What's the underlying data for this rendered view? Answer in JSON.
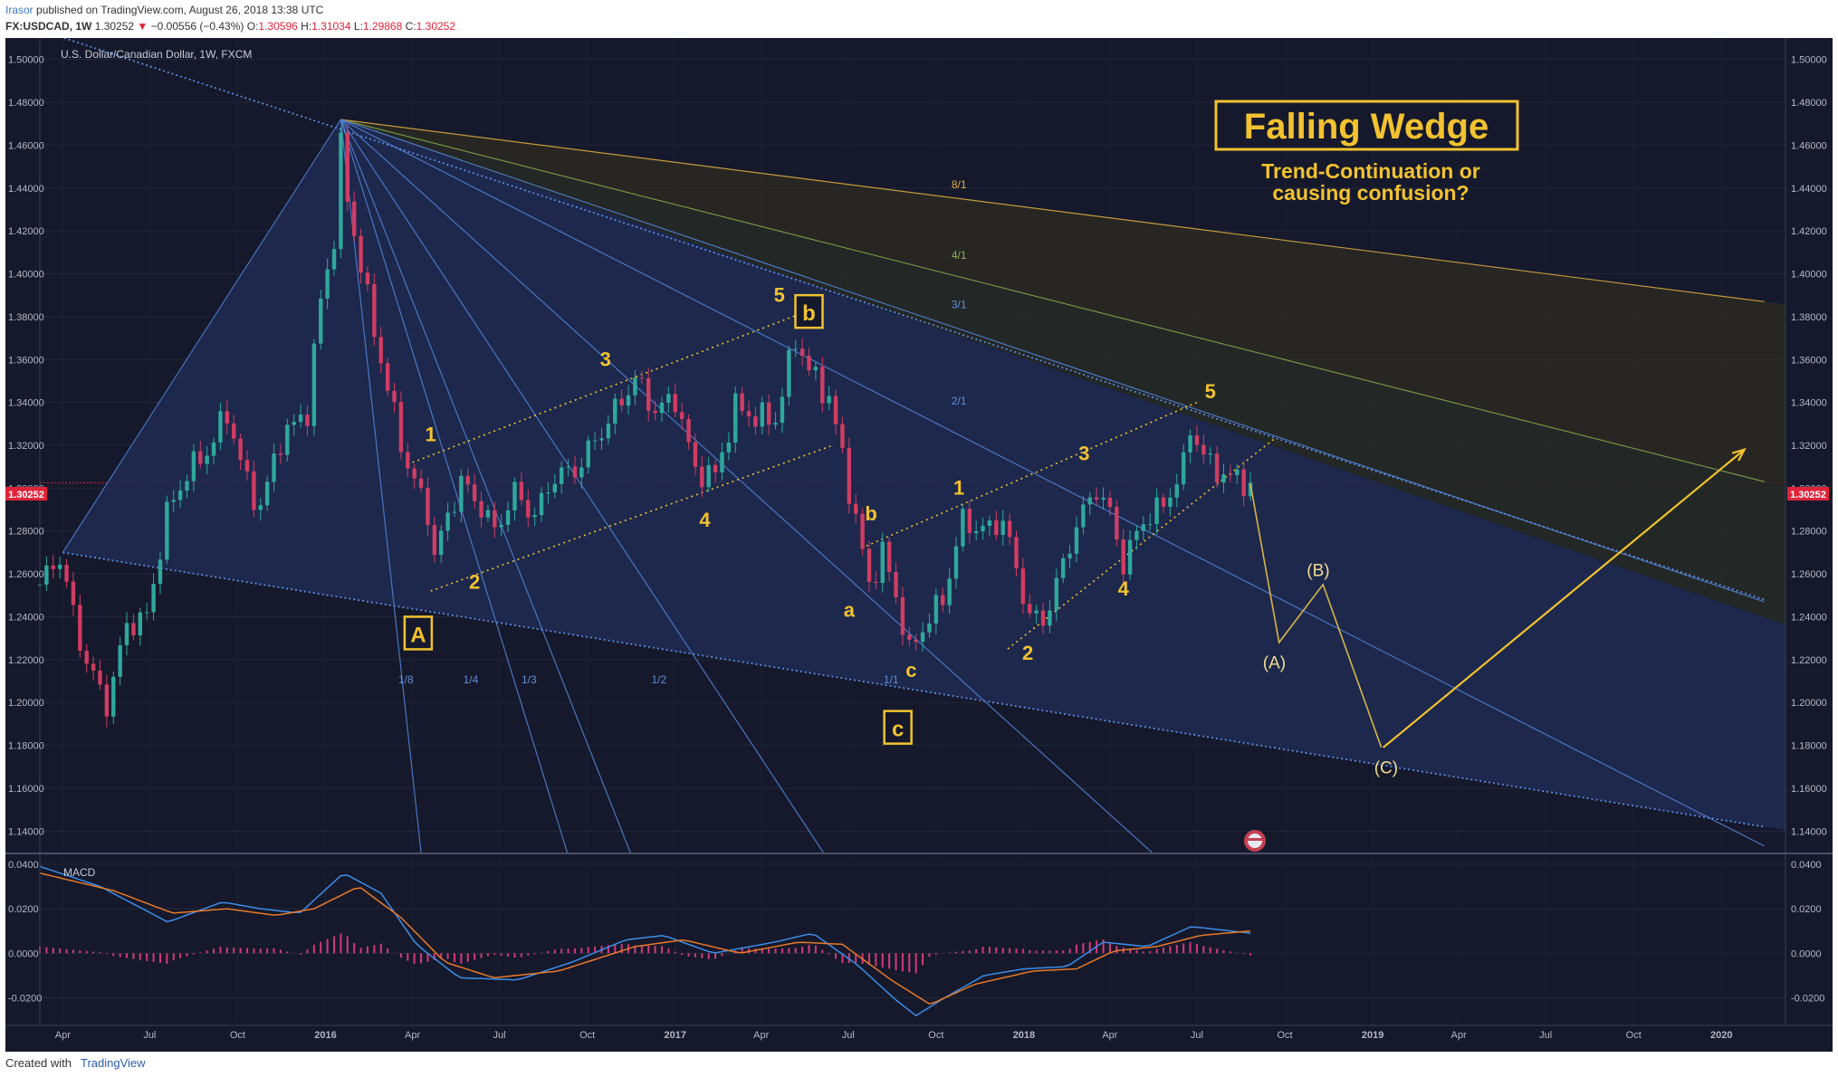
{
  "header": {
    "user": "Irasor",
    "published": "published on TradingView.com, August 26, 2018 13:38 UTC",
    "symbol": "FX:USDCAD, 1W",
    "price": "1.30252",
    "arrow": "▼",
    "change": "−0.00556 (−0.43%)",
    "o_label": "O:",
    "o_val": "1.30596",
    "h_label": "H:",
    "h_val": "1.31034",
    "l_label": "L:",
    "l_val": "1.29868",
    "c_label": "C:",
    "c_val": "1.30252"
  },
  "legend": "U.S. Dollar/Canadian Dollar, 1W, FXCM",
  "macd_label": "MACD",
  "last_price_tag": "1.30252",
  "annotations": {
    "title": "Falling Wedge",
    "subtitle1": "Trend-Continuation or",
    "subtitle2": "causing confusion?",
    "waves": [
      {
        "t": "1",
        "x": "2016-04-20",
        "y": 1.322,
        "c": "#f2c230"
      },
      {
        "t": "2",
        "x": "2016-06-05",
        "y": 1.253,
        "c": "#f2c230"
      },
      {
        "t": "3",
        "x": "2016-10-20",
        "y": 1.357,
        "c": "#f2c230"
      },
      {
        "t": "4",
        "x": "2017-02-01",
        "y": 1.282,
        "c": "#f2c230"
      },
      {
        "t": "5",
        "x": "2017-04-20",
        "y": 1.387,
        "c": "#f2c230"
      },
      {
        "t": "a",
        "x": "2017-07-02",
        "y": 1.24,
        "c": "#f2c230"
      },
      {
        "t": "b",
        "x": "2017-07-25",
        "y": 1.285,
        "c": "#f2c230"
      },
      {
        "t": "c",
        "x": "2017-09-05",
        "y": 1.212,
        "c": "#f2c230"
      },
      {
        "t": "1",
        "x": "2017-10-25",
        "y": 1.297,
        "c": "#f2c230"
      },
      {
        "t": "2",
        "x": "2018-01-05",
        "y": 1.22,
        "c": "#f2c230"
      },
      {
        "t": "3",
        "x": "2018-03-05",
        "y": 1.313,
        "c": "#f2c230"
      },
      {
        "t": "4",
        "x": "2018-04-15",
        "y": 1.25,
        "c": "#f2c230"
      },
      {
        "t": "5",
        "x": "2018-07-15",
        "y": 1.342,
        "c": "#f2c230"
      },
      {
        "t": "(A)",
        "x": "2018-09-20",
        "y": 1.216,
        "c": "#f2dc90"
      },
      {
        "t": "(B)",
        "x": "2018-11-05",
        "y": 1.259,
        "c": "#f2dc90"
      },
      {
        "t": "(C)",
        "x": "2019-01-15",
        "y": 1.167,
        "c": "#f2dc90"
      }
    ],
    "boxes": [
      {
        "t": "A",
        "x": "2016-04-07",
        "y": 1.232
      },
      {
        "t": "b",
        "x": "2017-05-21",
        "y": 1.382
      },
      {
        "t": "c",
        "x": "2017-08-22",
        "y": 1.188
      }
    ],
    "fan_labels": [
      {
        "t": "8/1",
        "x": "2017-10-25",
        "y": 1.44,
        "c": "#e0b040"
      },
      {
        "t": "4/1",
        "x": "2017-10-25",
        "y": 1.407,
        "c": "#8fb050"
      },
      {
        "t": "3/1",
        "x": "2017-10-25",
        "y": 1.384,
        "c": "#5f8fd8"
      },
      {
        "t": "2/1",
        "x": "2017-10-25",
        "y": 1.339,
        "c": "#5f8fd8"
      },
      {
        "t": "1/1",
        "x": "2017-08-15",
        "y": 1.209,
        "c": "#5f8fd8"
      },
      {
        "t": "1/2",
        "x": "2016-12-15",
        "y": 1.209,
        "c": "#5f8fd8"
      },
      {
        "t": "1/3",
        "x": "2016-08-01",
        "y": 1.209,
        "c": "#5f8fd8"
      },
      {
        "t": "1/4",
        "x": "2016-06-01",
        "y": 1.209,
        "c": "#5f8fd8"
      },
      {
        "t": "1/8",
        "x": "2016-03-25",
        "y": 1.209,
        "c": "#5f8fd8"
      }
    ]
  },
  "chart_data": {
    "type": "candlestick",
    "title": "U.S. Dollar/Canadian Dollar, 1W, FXCM",
    "y_range": [
      1.13,
      1.51
    ],
    "y_ticks": [
      "1.14000",
      "1.16000",
      "1.18000",
      "1.20000",
      "1.22000",
      "1.24000",
      "1.26000",
      "1.28000",
      "1.30000",
      "1.32000",
      "1.34000",
      "1.36000",
      "1.38000",
      "1.40000",
      "1.42000",
      "1.44000",
      "1.46000",
      "1.48000",
      "1.50000"
    ],
    "x_range": [
      "2015-03-08",
      "2020-03-08"
    ],
    "x_ticks": [
      {
        "label": "Apr",
        "date": "2015-04-01"
      },
      {
        "label": "Jul",
        "date": "2015-07-01"
      },
      {
        "label": "Oct",
        "date": "2015-10-01"
      },
      {
        "label": "2016",
        "date": "2016-01-01"
      },
      {
        "label": "Apr",
        "date": "2016-04-01"
      },
      {
        "label": "Jul",
        "date": "2016-07-01"
      },
      {
        "label": "Oct",
        "date": "2016-10-01"
      },
      {
        "label": "2017",
        "date": "2017-01-01"
      },
      {
        "label": "Apr",
        "date": "2017-04-01"
      },
      {
        "label": "Jul",
        "date": "2017-07-01"
      },
      {
        "label": "Oct",
        "date": "2017-10-01"
      },
      {
        "label": "2018",
        "date": "2018-01-01"
      },
      {
        "label": "Apr",
        "date": "2018-04-01"
      },
      {
        "label": "Jul",
        "date": "2018-07-01"
      },
      {
        "label": "Oct",
        "date": "2018-10-01"
      },
      {
        "label": "2019",
        "date": "2019-01-01"
      },
      {
        "label": "Apr",
        "date": "2019-04-01"
      },
      {
        "label": "Jul",
        "date": "2019-07-01"
      },
      {
        "label": "Oct",
        "date": "2019-10-01"
      },
      {
        "label": "2020",
        "date": "2020-01-01"
      }
    ],
    "anchors": [
      [
        "2015-03-08",
        1.255
      ],
      [
        "2015-03-29",
        1.268
      ],
      [
        "2015-04-19",
        1.228
      ],
      [
        "2015-05-03",
        1.212
      ],
      [
        "2015-05-17",
        1.199
      ],
      [
        "2015-06-07",
        1.236
      ],
      [
        "2015-06-28",
        1.24
      ],
      [
        "2015-07-19",
        1.288
      ],
      [
        "2015-08-09",
        1.307
      ],
      [
        "2015-08-30",
        1.317
      ],
      [
        "2015-09-20",
        1.335
      ],
      [
        "2015-10-11",
        1.302
      ],
      [
        "2015-10-25",
        1.291
      ],
      [
        "2015-11-15",
        1.323
      ],
      [
        "2015-12-13",
        1.336
      ],
      [
        "2015-12-27",
        1.388
      ],
      [
        "2016-01-10",
        1.417
      ],
      [
        "2016-01-17",
        1.459
      ],
      [
        "2016-01-24",
        1.435
      ],
      [
        "2016-02-14",
        1.388
      ],
      [
        "2016-03-06",
        1.346
      ],
      [
        "2016-03-27",
        1.31
      ],
      [
        "2016-04-17",
        1.289
      ],
      [
        "2016-04-24",
        1.268
      ],
      [
        "2016-05-08",
        1.287
      ],
      [
        "2016-05-22",
        1.303
      ],
      [
        "2016-06-12",
        1.291
      ],
      [
        "2016-06-26",
        1.28
      ],
      [
        "2016-07-17",
        1.298
      ],
      [
        "2016-08-07",
        1.287
      ],
      [
        "2016-08-28",
        1.306
      ],
      [
        "2016-09-18",
        1.308
      ],
      [
        "2016-10-09",
        1.322
      ],
      [
        "2016-10-30",
        1.336
      ],
      [
        "2016-11-20",
        1.351
      ],
      [
        "2016-12-11",
        1.336
      ],
      [
        "2017-01-01",
        1.342
      ],
      [
        "2017-01-22",
        1.308
      ],
      [
        "2017-02-12",
        1.306
      ],
      [
        "2017-03-05",
        1.338
      ],
      [
        "2017-03-26",
        1.333
      ],
      [
        "2017-04-16",
        1.332
      ],
      [
        "2017-05-07",
        1.37
      ],
      [
        "2017-05-21",
        1.355
      ],
      [
        "2017-06-11",
        1.342
      ],
      [
        "2017-06-25",
        1.315
      ],
      [
        "2017-07-09",
        1.285
      ],
      [
        "2017-07-23",
        1.255
      ],
      [
        "2017-08-06",
        1.27
      ],
      [
        "2017-08-20",
        1.25
      ],
      [
        "2017-09-03",
        1.223
      ],
      [
        "2017-09-17",
        1.235
      ],
      [
        "2017-10-08",
        1.248
      ],
      [
        "2017-10-29",
        1.285
      ],
      [
        "2017-11-19",
        1.28
      ],
      [
        "2017-12-10",
        1.285
      ],
      [
        "2017-12-24",
        1.262
      ],
      [
        "2018-01-07",
        1.24
      ],
      [
        "2018-01-21",
        1.238
      ],
      [
        "2018-02-04",
        1.255
      ],
      [
        "2018-02-25",
        1.283
      ],
      [
        "2018-03-18",
        1.3
      ],
      [
        "2018-04-01",
        1.288
      ],
      [
        "2018-04-15",
        1.265
      ],
      [
        "2018-05-06",
        1.285
      ],
      [
        "2018-05-27",
        1.292
      ],
      [
        "2018-06-17",
        1.31
      ],
      [
        "2018-06-24",
        1.328
      ],
      [
        "2018-07-15",
        1.31
      ],
      [
        "2018-08-05",
        1.305
      ],
      [
        "2018-08-26",
        1.3025
      ]
    ],
    "last_close": 1.30252,
    "macd": {
      "y_range": [
        -0.032,
        0.044
      ],
      "y_ticks": [
        "-0.0200",
        "0.0000",
        "0.0200",
        "0.0400"
      ],
      "macd_anchors": [
        [
          "2015-03-08",
          0.039
        ],
        [
          "2015-05-10",
          0.03
        ],
        [
          "2015-07-20",
          0.014
        ],
        [
          "2015-09-15",
          0.023
        ],
        [
          "2015-10-25",
          0.02
        ],
        [
          "2015-12-05",
          0.018
        ],
        [
          "2016-01-20",
          0.036
        ],
        [
          "2016-02-28",
          0.027
        ],
        [
          "2016-04-05",
          0.004
        ],
        [
          "2016-05-20",
          -0.011
        ],
        [
          "2016-07-20",
          -0.012
        ],
        [
          "2016-09-15",
          -0.004
        ],
        [
          "2016-11-10",
          0.006
        ],
        [
          "2016-12-20",
          0.008
        ],
        [
          "2017-02-10",
          0.0
        ],
        [
          "2017-04-15",
          0.005
        ],
        [
          "2017-05-25",
          0.009
        ],
        [
          "2017-07-10",
          -0.005
        ],
        [
          "2017-08-20",
          -0.021
        ],
        [
          "2017-09-10",
          -0.028
        ],
        [
          "2017-10-10",
          -0.02
        ],
        [
          "2017-11-20",
          -0.01
        ],
        [
          "2018-01-01",
          -0.007
        ],
        [
          "2018-02-15",
          -0.006
        ],
        [
          "2018-03-25",
          0.005
        ],
        [
          "2018-05-10",
          0.003
        ],
        [
          "2018-06-25",
          0.012
        ],
        [
          "2018-08-26",
          0.009
        ]
      ],
      "signal_anchors": [
        [
          "2015-03-08",
          0.036
        ],
        [
          "2015-05-25",
          0.028
        ],
        [
          "2015-07-25",
          0.018
        ],
        [
          "2015-09-20",
          0.02
        ],
        [
          "2015-11-10",
          0.017
        ],
        [
          "2015-12-20",
          0.02
        ],
        [
          "2016-02-05",
          0.03
        ],
        [
          "2016-03-20",
          0.016
        ],
        [
          "2016-05-05",
          -0.004
        ],
        [
          "2016-06-25",
          -0.011
        ],
        [
          "2016-09-01",
          -0.008
        ],
        [
          "2016-11-20",
          0.003
        ],
        [
          "2017-01-10",
          0.006
        ],
        [
          "2017-03-10",
          0.0
        ],
        [
          "2017-05-10",
          0.005
        ],
        [
          "2017-06-25",
          0.004
        ],
        [
          "2017-08-15",
          -0.012
        ],
        [
          "2017-09-25",
          -0.023
        ],
        [
          "2017-11-10",
          -0.014
        ],
        [
          "2018-01-10",
          -0.008
        ],
        [
          "2018-02-25",
          -0.007
        ],
        [
          "2018-04-05",
          0.001
        ],
        [
          "2018-05-20",
          0.003
        ],
        [
          "2018-07-05",
          0.008
        ],
        [
          "2018-08-26",
          0.01
        ]
      ]
    }
  }
}
